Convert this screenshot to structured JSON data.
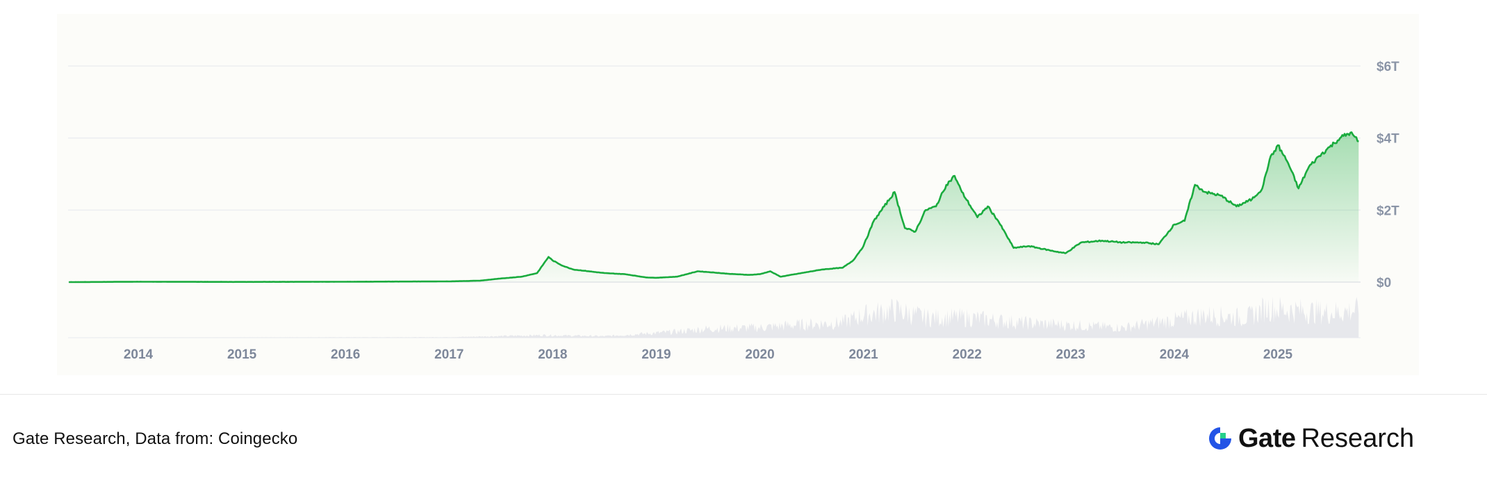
{
  "chart_data": {
    "type": "area",
    "x_axis": {
      "ticks": [
        "2014",
        "2015",
        "2016",
        "2017",
        "2018",
        "2019",
        "2020",
        "2021",
        "2022",
        "2023",
        "2024",
        "2025"
      ],
      "range": [
        "2013-04-28",
        "2025-10-12"
      ]
    },
    "y_axis": {
      "ticks": [
        "$0",
        "$2T",
        "$4T",
        "$6T"
      ],
      "tick_values": [
        0,
        2,
        4,
        6
      ],
      "unit": "trillion USD",
      "range": [
        0,
        6
      ],
      "position": "right"
    },
    "grid": true,
    "series": [
      {
        "color": "#1aab3e",
        "x": [
          2013.33,
          2014.0,
          2015.0,
          2016.0,
          2017.0,
          2017.3,
          2017.5,
          2017.7,
          2017.85,
          2017.96,
          2018.0,
          2018.1,
          2018.2,
          2018.35,
          2018.5,
          2018.7,
          2018.9,
          2019.0,
          2019.2,
          2019.4,
          2019.5,
          2019.7,
          2019.9,
          2020.0,
          2020.1,
          2020.2,
          2020.4,
          2020.6,
          2020.8,
          2020.9,
          2021.0,
          2021.1,
          2021.2,
          2021.3,
          2021.4,
          2021.5,
          2021.6,
          2021.7,
          2021.8,
          2021.88,
          2021.95,
          2022.1,
          2022.2,
          2022.3,
          2022.45,
          2022.6,
          2022.8,
          2022.95,
          2023.1,
          2023.3,
          2023.5,
          2023.7,
          2023.85,
          2024.0,
          2024.1,
          2024.2,
          2024.3,
          2024.45,
          2024.6,
          2024.75,
          2024.85,
          2024.92,
          2025.0,
          2025.1,
          2025.2,
          2025.3,
          2025.4,
          2025.5,
          2025.6,
          2025.7,
          2025.78
        ],
        "values": [
          0.0,
          0.01,
          0.005,
          0.01,
          0.02,
          0.04,
          0.1,
          0.15,
          0.25,
          0.7,
          0.6,
          0.45,
          0.35,
          0.3,
          0.25,
          0.22,
          0.13,
          0.12,
          0.15,
          0.3,
          0.28,
          0.23,
          0.2,
          0.22,
          0.3,
          0.15,
          0.25,
          0.35,
          0.4,
          0.6,
          1.0,
          1.7,
          2.1,
          2.5,
          1.5,
          1.4,
          2.0,
          2.1,
          2.7,
          2.95,
          2.5,
          1.8,
          2.1,
          1.7,
          0.95,
          1.0,
          0.88,
          0.8,
          1.1,
          1.15,
          1.1,
          1.1,
          1.05,
          1.6,
          1.7,
          2.7,
          2.5,
          2.4,
          2.1,
          2.3,
          2.6,
          3.4,
          3.8,
          3.3,
          2.6,
          3.2,
          3.5,
          3.75,
          4.0,
          4.15,
          3.9
        ]
      }
    ],
    "volume_series": {
      "color": "#e7e8ec",
      "x": [
        2013.33,
        2017.0,
        2017.9,
        2018.5,
        2019.2,
        2019.5,
        2020.0,
        2020.3,
        2020.8,
        2021.0,
        2021.3,
        2021.6,
        2022.0,
        2022.5,
        2023.0,
        2023.5,
        2024.0,
        2024.3,
        2024.7,
        2024.9,
        2025.1,
        2025.5,
        2025.78
      ],
      "values": [
        0.0,
        0.01,
        0.05,
        0.03,
        0.12,
        0.18,
        0.2,
        0.25,
        0.3,
        0.45,
        0.55,
        0.4,
        0.4,
        0.3,
        0.25,
        0.2,
        0.35,
        0.45,
        0.4,
        0.6,
        0.55,
        0.5,
        0.55
      ]
    }
  },
  "footer": {
    "source": "Gate Research, Data from: Coingecko",
    "brand_gate": "Gate",
    "brand_research": "Research",
    "logo_icon": "gate-logo-icon"
  }
}
